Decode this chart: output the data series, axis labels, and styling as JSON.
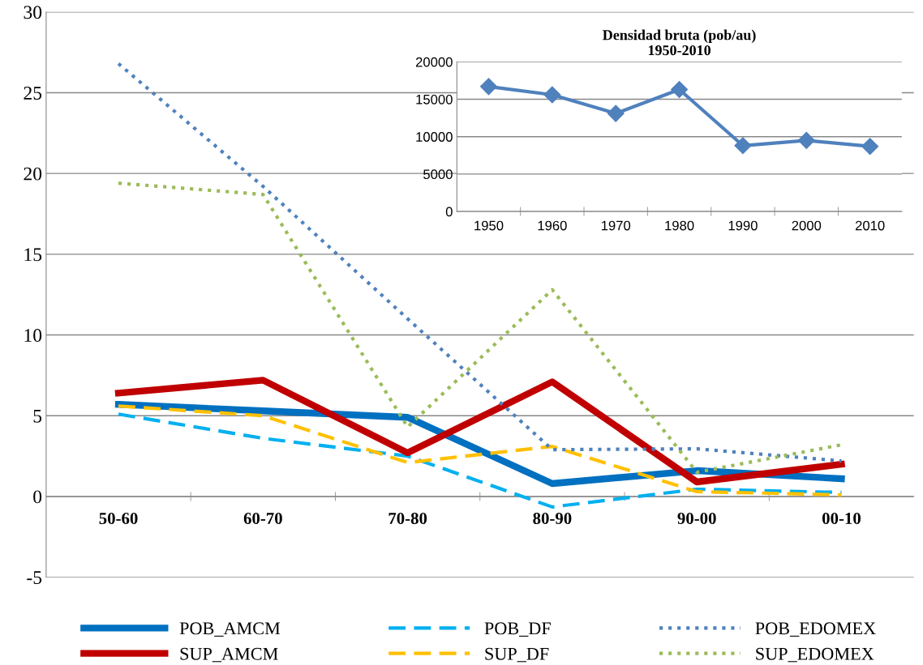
{
  "chart_data": [
    {
      "type": "line",
      "categories": [
        "50-60",
        "60-70",
        "70-80",
        "80-90",
        "90-00",
        "00-10"
      ],
      "ylim": [
        -5,
        30
      ],
      "yticks": [
        -5,
        0,
        5,
        10,
        15,
        20,
        25,
        30
      ],
      "grid": "y",
      "legend": "bottom",
      "marker": "none",
      "series": [
        {
          "name": "POB_AMCM",
          "color": "#0070c0",
          "line_style": "solid",
          "values": [
            5.7,
            5.3,
            4.9,
            0.8,
            1.6,
            1.1
          ]
        },
        {
          "name": "POB_DF",
          "color": "#00b0f0",
          "line_style": "dashed",
          "values": [
            5.1,
            3.6,
            2.5,
            -0.65,
            0.45,
            0.25
          ]
        },
        {
          "name": "POB_EDOMEX",
          "color": "#4f81bd",
          "line_style": "dotted",
          "values": [
            26.8,
            19.2,
            11,
            2.9,
            2.95,
            2.2
          ]
        },
        {
          "name": "SUP_AMCM",
          "color": "#c00000",
          "line_style": "solid",
          "values": [
            6.4,
            7.2,
            2.7,
            7.1,
            0.9,
            2.0
          ]
        },
        {
          "name": "SUP_DF",
          "color": "#ffc000",
          "line_style": "dashed",
          "values": [
            5.6,
            5.0,
            2.1,
            3.1,
            0.3,
            0.1
          ]
        },
        {
          "name": "SUP_EDOMEX",
          "color": "#9bbb59",
          "line_style": "dotted",
          "values": [
            19.4,
            18.7,
            4.3,
            12.8,
            1.5,
            3.2
          ]
        }
      ]
    },
    {
      "type": "line",
      "title": "Densidad bruta (pob/au)\n1950-2010",
      "categories": [
        "1950",
        "1960",
        "1970",
        "1980",
        "1990",
        "2000",
        "2010"
      ],
      "ylim": [
        0,
        20000
      ],
      "yticks": [
        0,
        5000,
        10000,
        15000,
        20000
      ],
      "grid": "y",
      "marker": "diamond",
      "line_style": "solid",
      "series": [
        {
          "color": "#4f81bd",
          "values": [
            16700,
            15600,
            13100,
            16300,
            8800,
            9500,
            8700
          ]
        }
      ]
    }
  ]
}
